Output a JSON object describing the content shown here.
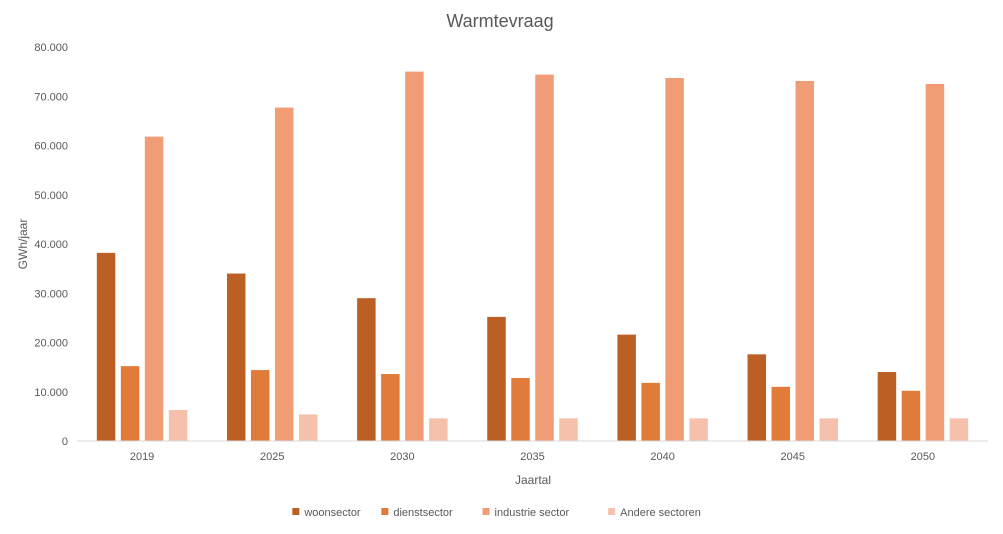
{
  "chart_data": {
    "type": "bar",
    "title": "Warmtevraag",
    "xlabel": "Jaartal",
    "ylabel": "GWh/jaar",
    "categories": [
      "2019",
      "2025",
      "2030",
      "2035",
      "2040",
      "2045",
      "2050"
    ],
    "ylim": [
      0,
      80000
    ],
    "yticks": [
      0,
      10000,
      20000,
      30000,
      40000,
      50000,
      60000,
      70000,
      80000
    ],
    "ytick_labels": [
      "0",
      "10.000",
      "20.000",
      "30.000",
      "40.000",
      "50.000",
      "60.000",
      "70.000",
      "80.000"
    ],
    "grid": false,
    "legend_position": "bottom",
    "series": [
      {
        "name": "woonsector",
        "color": "#bb5f24",
        "values": [
          38200,
          34000,
          29000,
          25200,
          21600,
          17600,
          14000
        ]
      },
      {
        "name": "dienstsector",
        "color": "#e07b39",
        "values": [
          15200,
          14400,
          13600,
          12800,
          11800,
          11000,
          10200
        ]
      },
      {
        "name": "industrie sector",
        "color": "#f09c74",
        "values": [
          61800,
          67700,
          75000,
          74400,
          73700,
          73100,
          72500
        ]
      },
      {
        "name": "Andere sectoren",
        "color": "#f5c1ad",
        "values": [
          6300,
          5400,
          4600,
          4600,
          4600,
          4600,
          4600
        ]
      }
    ]
  }
}
